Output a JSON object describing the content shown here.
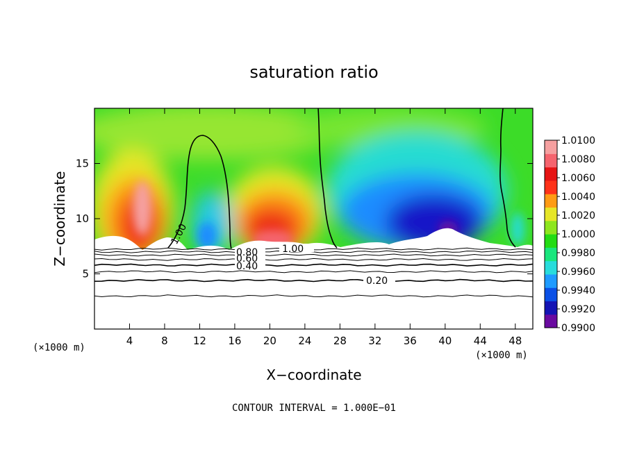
{
  "chart_data": {
    "type": "heatmap",
    "title": "saturation ratio",
    "xlabel": "X−coordinate",
    "ylabel": "Z−coordinate",
    "x_units_left": "(×1000 m)",
    "x_units_right": "(×1000 m)",
    "xlim": [
      0,
      50
    ],
    "ylim": [
      0,
      20
    ],
    "x_ticks": [
      4,
      8,
      12,
      16,
      20,
      24,
      28,
      32,
      36,
      40,
      44,
      48
    ],
    "y_ticks": [
      5,
      10,
      15
    ],
    "colorbar": {
      "min": 0.99,
      "max": 1.01,
      "ticks": [
        "1.0100",
        "1.0080",
        "1.0060",
        "1.0040",
        "1.0020",
        "1.0000",
        "0.9980",
        "0.9960",
        "0.9940",
        "0.9920",
        "0.9900"
      ],
      "colors": [
        "#6a0aa0",
        "#1414b4",
        "#0a50e6",
        "#1e9bff",
        "#28dcdc",
        "#19e67d",
        "#23dc14",
        "#8ee61e",
        "#e6e628",
        "#ff9b14",
        "#ff3219",
        "#e61414",
        "#f5646e",
        "#f5a0a0"
      ]
    },
    "contour_labels": [
      "1.00",
      "0.60",
      "0.40",
      "0.20",
      "1.00",
      "0.80"
    ],
    "lower_contour_levels_z": [
      3.0,
      4.4,
      5.2,
      5.8,
      6.3,
      6.7,
      7.0,
      7.25
    ],
    "footer": "CONTOUR INTERVAL = 1.000E−01"
  }
}
